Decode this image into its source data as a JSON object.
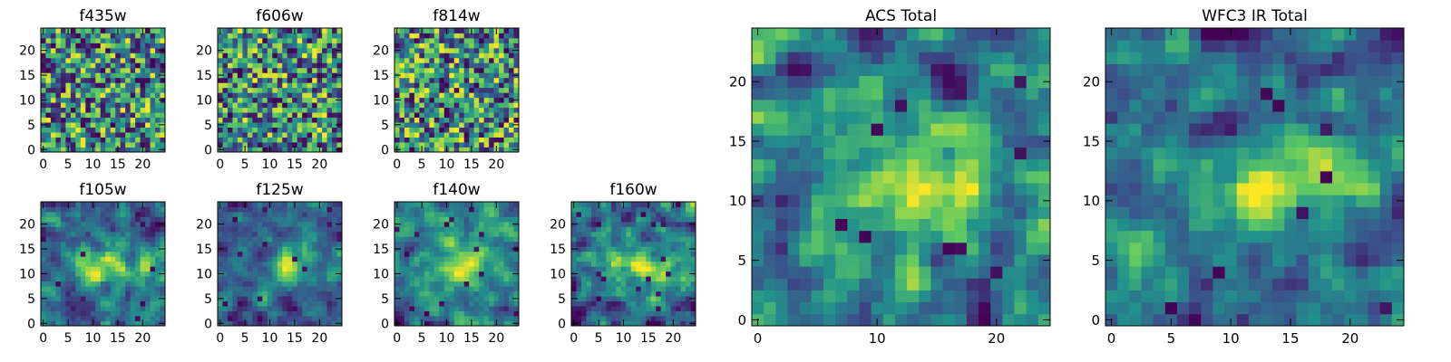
{
  "chart_data": [
    {
      "type": "heatmap",
      "title": "f435w",
      "size": 25,
      "seed": 11,
      "style": "noisy",
      "contrast": 1.0,
      "xticks": [
        0,
        5,
        10,
        15,
        20
      ],
      "yticks": [
        0,
        5,
        10,
        15,
        20
      ]
    },
    {
      "type": "heatmap",
      "title": "f606w",
      "size": 25,
      "seed": 22,
      "style": "noisy",
      "contrast": 1.0,
      "xticks": [
        0,
        5,
        10,
        15,
        20
      ],
      "yticks": [
        0,
        5,
        10,
        15,
        20
      ]
    },
    {
      "type": "heatmap",
      "title": "f814w",
      "size": 25,
      "seed": 33,
      "style": "noisy",
      "contrast": 1.0,
      "xticks": [
        0,
        5,
        10,
        15,
        20
      ],
      "yticks": [
        0,
        5,
        10,
        15,
        20
      ]
    },
    {
      "type": "heatmap",
      "title": "f105w",
      "size": 25,
      "seed": 44,
      "style": "smooth",
      "contrast": 1.0,
      "xticks": [
        0,
        5,
        10,
        15,
        20
      ],
      "yticks": [
        0,
        5,
        10,
        15,
        20
      ]
    },
    {
      "type": "heatmap",
      "title": "f125w",
      "size": 25,
      "seed": 55,
      "style": "smooth",
      "contrast": 1.0,
      "xticks": [
        0,
        5,
        10,
        15,
        20
      ],
      "yticks": [
        0,
        5,
        10,
        15,
        20
      ]
    },
    {
      "type": "heatmap",
      "title": "f140w",
      "size": 25,
      "seed": 66,
      "style": "smooth",
      "contrast": 1.0,
      "xticks": [
        0,
        5,
        10,
        15,
        20
      ],
      "yticks": [
        0,
        5,
        10,
        15,
        20
      ]
    },
    {
      "type": "heatmap",
      "title": "f160w",
      "size": 25,
      "seed": 77,
      "style": "smooth",
      "contrast": 1.2,
      "xticks": [
        0,
        5,
        10,
        15,
        20
      ],
      "yticks": [
        0,
        5,
        10,
        15,
        20
      ]
    },
    {
      "type": "heatmap",
      "title": "ACS Total",
      "size": 25,
      "seed": 88,
      "style": "total",
      "contrast": 1.0,
      "xticks": [
        0,
        10,
        20
      ],
      "yticks": [
        0,
        5,
        10,
        15,
        20
      ]
    },
    {
      "type": "heatmap",
      "title": "WFC3 IR Total",
      "size": 25,
      "seed": 99,
      "style": "total",
      "contrast": 1.1,
      "xticks": [
        0,
        5,
        10,
        15,
        20
      ],
      "yticks": [
        0,
        5,
        10,
        15,
        20
      ]
    }
  ],
  "colormap": [
    "#440154",
    "#3b528b",
    "#21918c",
    "#5ec962",
    "#fde725"
  ]
}
